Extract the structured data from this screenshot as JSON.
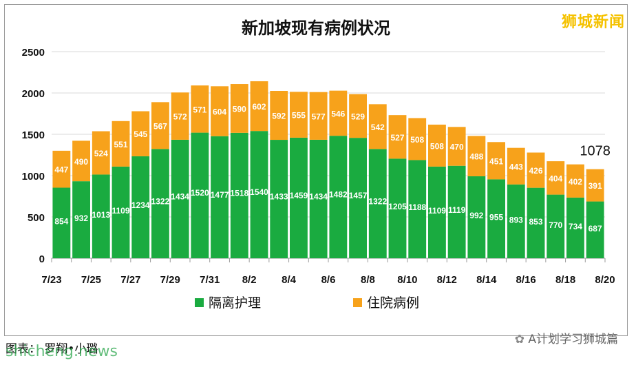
{
  "brand": "狮城新闻",
  "footer": {
    "caption": "图表：   罗翔•小璐",
    "watermark": "shicheng.news",
    "wechat": "A计划学习狮城篇"
  },
  "colors": {
    "isolation": "#1aab40",
    "hospital": "#f7a21b"
  },
  "chart_data": {
    "type": "bar",
    "stacked": true,
    "title": "新加坡现有病例状况",
    "xlabel": "",
    "ylabel": "",
    "ylim": [
      0,
      2500
    ],
    "yticks": [
      0,
      500,
      1000,
      1500,
      2000,
      2500
    ],
    "grid": true,
    "legend_position": "bottom",
    "categories": [
      "7/23",
      "7/24",
      "7/25",
      "7/26",
      "7/27",
      "7/28",
      "7/29",
      "7/30",
      "7/31",
      "8/1",
      "8/2",
      "8/3",
      "8/4",
      "8/5",
      "8/6",
      "8/7",
      "8/8",
      "8/9",
      "8/10",
      "8/11",
      "8/12",
      "8/13",
      "8/14",
      "8/15",
      "8/16",
      "8/17",
      "8/18",
      "8/19"
    ],
    "xtick_labels": [
      "7/23",
      "7/25",
      "7/27",
      "7/29",
      "7/31",
      "8/2",
      "8/4",
      "8/6",
      "8/8",
      "8/10",
      "8/12",
      "8/14",
      "8/16",
      "8/18",
      "8/20"
    ],
    "series": [
      {
        "name": "隔离护理",
        "values": [
          854,
          932,
          1013,
          1109,
          1234,
          1322,
          1434,
          1520,
          1477,
          1518,
          1540,
          1433,
          1459,
          1434,
          1482,
          1457,
          1322,
          1205,
          1188,
          1109,
          1119,
          992,
          955,
          893,
          853,
          770,
          734,
          687
        ]
      },
      {
        "name": "住院病例",
        "values": [
          447,
          490,
          524,
          551,
          545,
          567,
          572,
          571,
          604,
          590,
          602,
          592,
          555,
          577,
          546,
          529,
          542,
          527,
          508,
          508,
          470,
          488,
          451,
          443,
          426,
          404,
          402,
          391
        ]
      }
    ],
    "annotations": [
      {
        "category": "8/19",
        "text": "1078"
      }
    ]
  }
}
